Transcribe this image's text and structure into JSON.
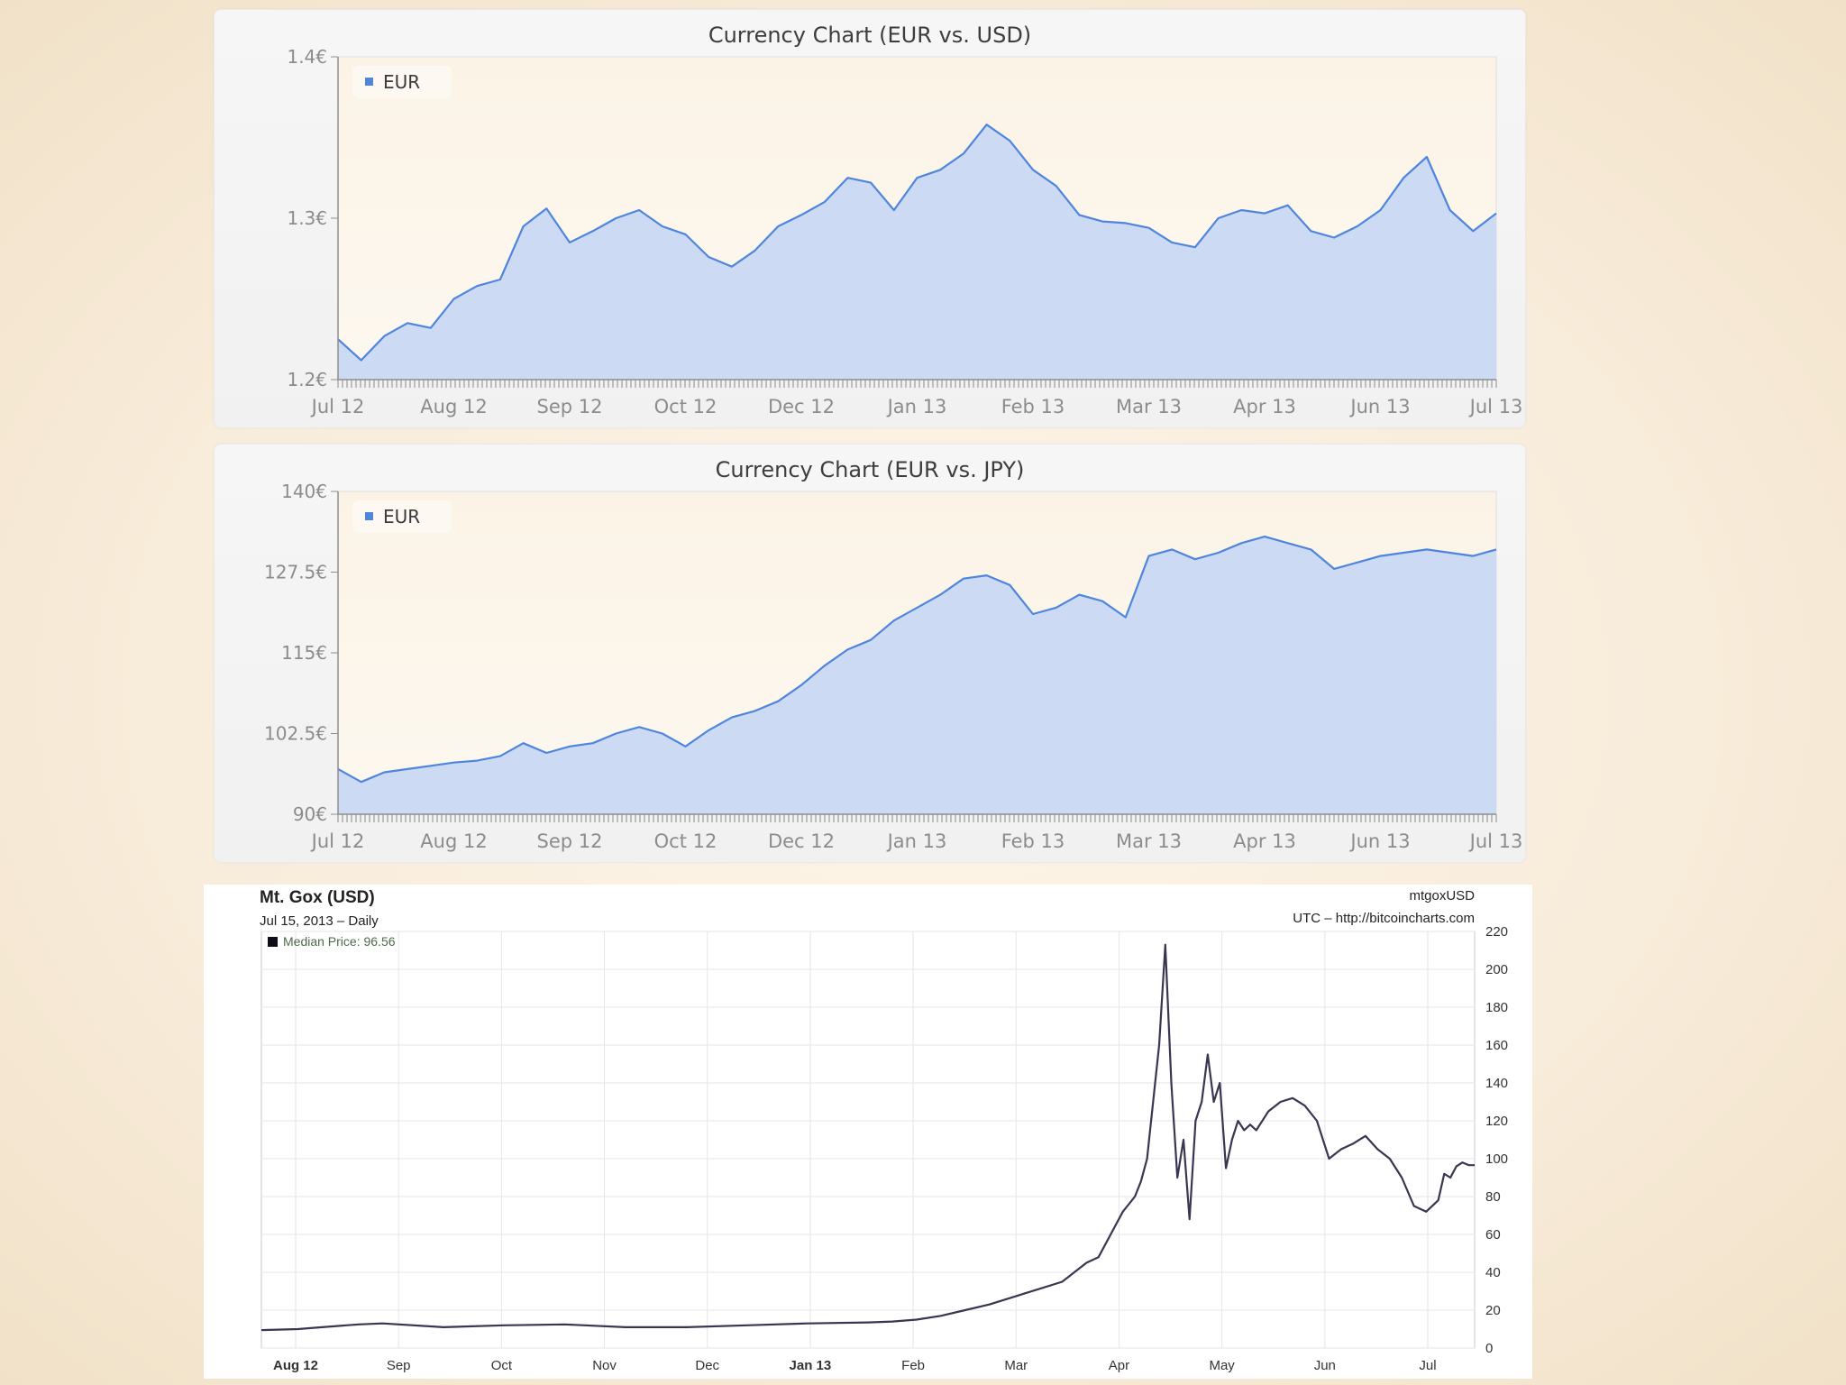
{
  "colors": {
    "currency_line": "#4f86dd",
    "currency_fill": "#cad8f3",
    "btc_line": "#3a3550",
    "grid": "#e6e6ea"
  },
  "chart_data": [
    {
      "type": "area",
      "title": "Currency Chart (EUR vs. USD)",
      "legend": [
        "EUR"
      ],
      "legend_position": "top-left",
      "x_tick_labels": [
        "Jul 12",
        "Aug 12",
        "Sep 12",
        "Oct 12",
        "Dec 12",
        "Jan 13",
        "Feb 13",
        "Mar 13",
        "Apr 13",
        "Jun 13",
        "Jul 13"
      ],
      "y_tick_labels": [
        "1.4€",
        "1.3€",
        "1.2€"
      ],
      "ylim": [
        1.2,
        1.4
      ],
      "series": [
        {
          "name": "EUR",
          "x_fraction": [
            0,
            0.02,
            0.04,
            0.06,
            0.08,
            0.1,
            0.12,
            0.14,
            0.16,
            0.18,
            0.2,
            0.22,
            0.24,
            0.26,
            0.28,
            0.3,
            0.32,
            0.34,
            0.36,
            0.38,
            0.4,
            0.42,
            0.44,
            0.46,
            0.48,
            0.5,
            0.52,
            0.54,
            0.56,
            0.58,
            0.6,
            0.62,
            0.64,
            0.66,
            0.68,
            0.7,
            0.72,
            0.74,
            0.76,
            0.78,
            0.8,
            0.82,
            0.84,
            0.86,
            0.88,
            0.9,
            0.92,
            0.94,
            0.96,
            0.98,
            1.0
          ],
          "values": [
            1.225,
            1.212,
            1.227,
            1.235,
            1.232,
            1.25,
            1.258,
            1.262,
            1.295,
            1.306,
            1.285,
            1.292,
            1.3,
            1.305,
            1.295,
            1.29,
            1.276,
            1.27,
            1.28,
            1.295,
            1.302,
            1.31,
            1.325,
            1.322,
            1.305,
            1.325,
            1.33,
            1.34,
            1.358,
            1.348,
            1.33,
            1.32,
            1.302,
            1.298,
            1.297,
            1.294,
            1.285,
            1.282,
            1.3,
            1.305,
            1.303,
            1.308,
            1.292,
            1.288,
            1.295,
            1.305,
            1.325,
            1.338,
            1.305,
            1.292,
            1.303
          ]
        }
      ]
    },
    {
      "type": "area",
      "title": "Currency Chart (EUR vs. JPY)",
      "legend": [
        "EUR"
      ],
      "legend_position": "top-left",
      "x_tick_labels": [
        "Jul 12",
        "Aug 12",
        "Sep 12",
        "Oct 12",
        "Dec 12",
        "Jan 13",
        "Feb 13",
        "Mar 13",
        "Apr 13",
        "Jun 13",
        "Jul 13"
      ],
      "y_tick_labels": [
        "140€",
        "127.5€",
        "115€",
        "102.5€",
        "90€"
      ],
      "ylim": [
        90,
        140
      ],
      "series": [
        {
          "name": "EUR",
          "x_fraction": [
            0,
            0.02,
            0.04,
            0.06,
            0.08,
            0.1,
            0.12,
            0.14,
            0.16,
            0.18,
            0.2,
            0.22,
            0.24,
            0.26,
            0.28,
            0.3,
            0.32,
            0.34,
            0.36,
            0.38,
            0.4,
            0.42,
            0.44,
            0.46,
            0.48,
            0.5,
            0.52,
            0.54,
            0.56,
            0.58,
            0.6,
            0.62,
            0.64,
            0.66,
            0.68,
            0.7,
            0.72,
            0.74,
            0.76,
            0.78,
            0.8,
            0.82,
            0.84,
            0.86,
            0.88,
            0.9,
            0.92,
            0.94,
            0.96,
            0.98,
            1.0
          ],
          "values": [
            97,
            95,
            96.5,
            97,
            97.5,
            98,
            98.3,
            99,
            101,
            99.5,
            100.5,
            101,
            102.5,
            103.5,
            102.5,
            100.5,
            103,
            105,
            106,
            107.5,
            110,
            113,
            115.5,
            117,
            120,
            122,
            124,
            126.5,
            127,
            125.5,
            121,
            122,
            124,
            123,
            120.5,
            130,
            131,
            129.5,
            130.5,
            132,
            133,
            132,
            131,
            128,
            129,
            130,
            130.5,
            131,
            130.5,
            130,
            131
          ]
        }
      ]
    },
    {
      "type": "line",
      "title": "Mt. Gox (USD)",
      "subtitle": "Jul 15, 2013 – Daily",
      "symbol": "mtgoxUSD",
      "source": "UTC – http://bitcoincharts.com",
      "legend": [
        "Median Price: 96.56"
      ],
      "legend_position": "top-left",
      "x_tick_labels": [
        "Aug 12",
        "Sep",
        "Oct",
        "Nov",
        "Dec",
        "Jan 13",
        "Feb",
        "Mar",
        "Apr",
        "May",
        "Jun",
        "Jul"
      ],
      "y_tick_labels": [
        "220",
        "200",
        "180",
        "160",
        "140",
        "120",
        "100",
        "80",
        "60",
        "40",
        "20",
        "0"
      ],
      "ylim": [
        0,
        220
      ],
      "y_axis_position": "right",
      "series": [
        {
          "name": "Median Price",
          "x_fraction": [
            0,
            0.03,
            0.05,
            0.07,
            0.08,
            0.1,
            0.15,
            0.2,
            0.25,
            0.3,
            0.35,
            0.4,
            0.45,
            0.5,
            0.52,
            0.54,
            0.56,
            0.58,
            0.6,
            0.62,
            0.63,
            0.64,
            0.66,
            0.68,
            0.69,
            0.7,
            0.71,
            0.72,
            0.725,
            0.73,
            0.735,
            0.74,
            0.745,
            0.75,
            0.755,
            0.76,
            0.765,
            0.77,
            0.775,
            0.78,
            0.785,
            0.79,
            0.795,
            0.8,
            0.805,
            0.81,
            0.815,
            0.82,
            0.83,
            0.84,
            0.85,
            0.86,
            0.87,
            0.88,
            0.89,
            0.9,
            0.91,
            0.92,
            0.93,
            0.94,
            0.95,
            0.96,
            0.97,
            0.975,
            0.98,
            0.985,
            0.99,
            0.995,
            1.0
          ],
          "values": [
            9.5,
            10,
            11,
            12,
            12.5,
            13,
            11,
            12,
            12.5,
            11,
            11,
            12,
            13,
            13.5,
            14,
            15,
            17,
            20,
            23,
            27,
            29,
            31,
            35,
            45,
            48,
            60,
            72,
            80,
            88,
            100,
            130,
            160,
            213,
            140,
            90,
            110,
            68,
            120,
            130,
            155,
            130,
            140,
            95,
            110,
            120,
            115,
            118,
            115,
            125,
            130,
            132,
            128,
            120,
            100,
            105,
            108,
            112,
            105,
            100,
            90,
            75,
            72,
            78,
            92,
            90,
            96,
            98,
            96.6,
            96.56
          ]
        }
      ]
    }
  ]
}
